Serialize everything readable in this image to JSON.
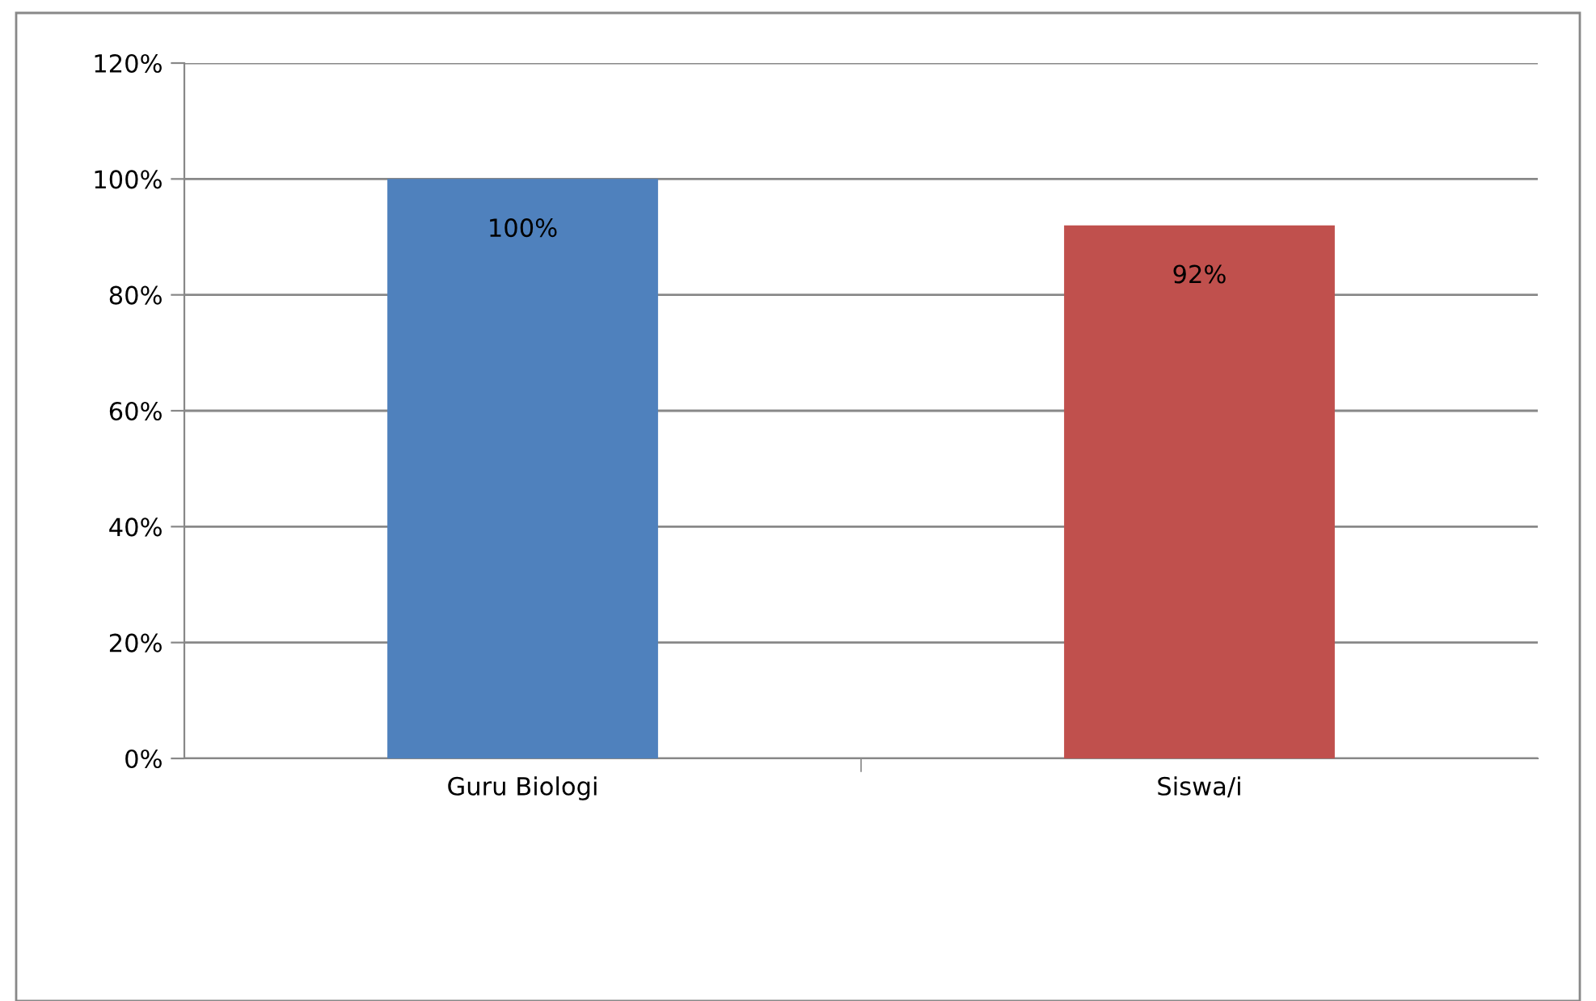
{
  "chart_data": {
    "type": "bar",
    "categories": [
      "Guru Biologi",
      "Siswa/i"
    ],
    "values": [
      100,
      92
    ],
    "colors": [
      "#4f81bd",
      "#c0504d"
    ],
    "ylim": [
      0,
      120
    ],
    "yticks": [
      {
        "value": 0,
        "label": "0%"
      },
      {
        "value": 20,
        "label": "20%"
      },
      {
        "value": 40,
        "label": "40%"
      },
      {
        "value": 60,
        "label": "60%"
      },
      {
        "value": 80,
        "label": "80%"
      },
      {
        "value": 100,
        "label": "100%"
      },
      {
        "value": 120,
        "label": "120%"
      }
    ],
    "value_labels": [
      "100%",
      "92%"
    ],
    "grid": "y"
  }
}
